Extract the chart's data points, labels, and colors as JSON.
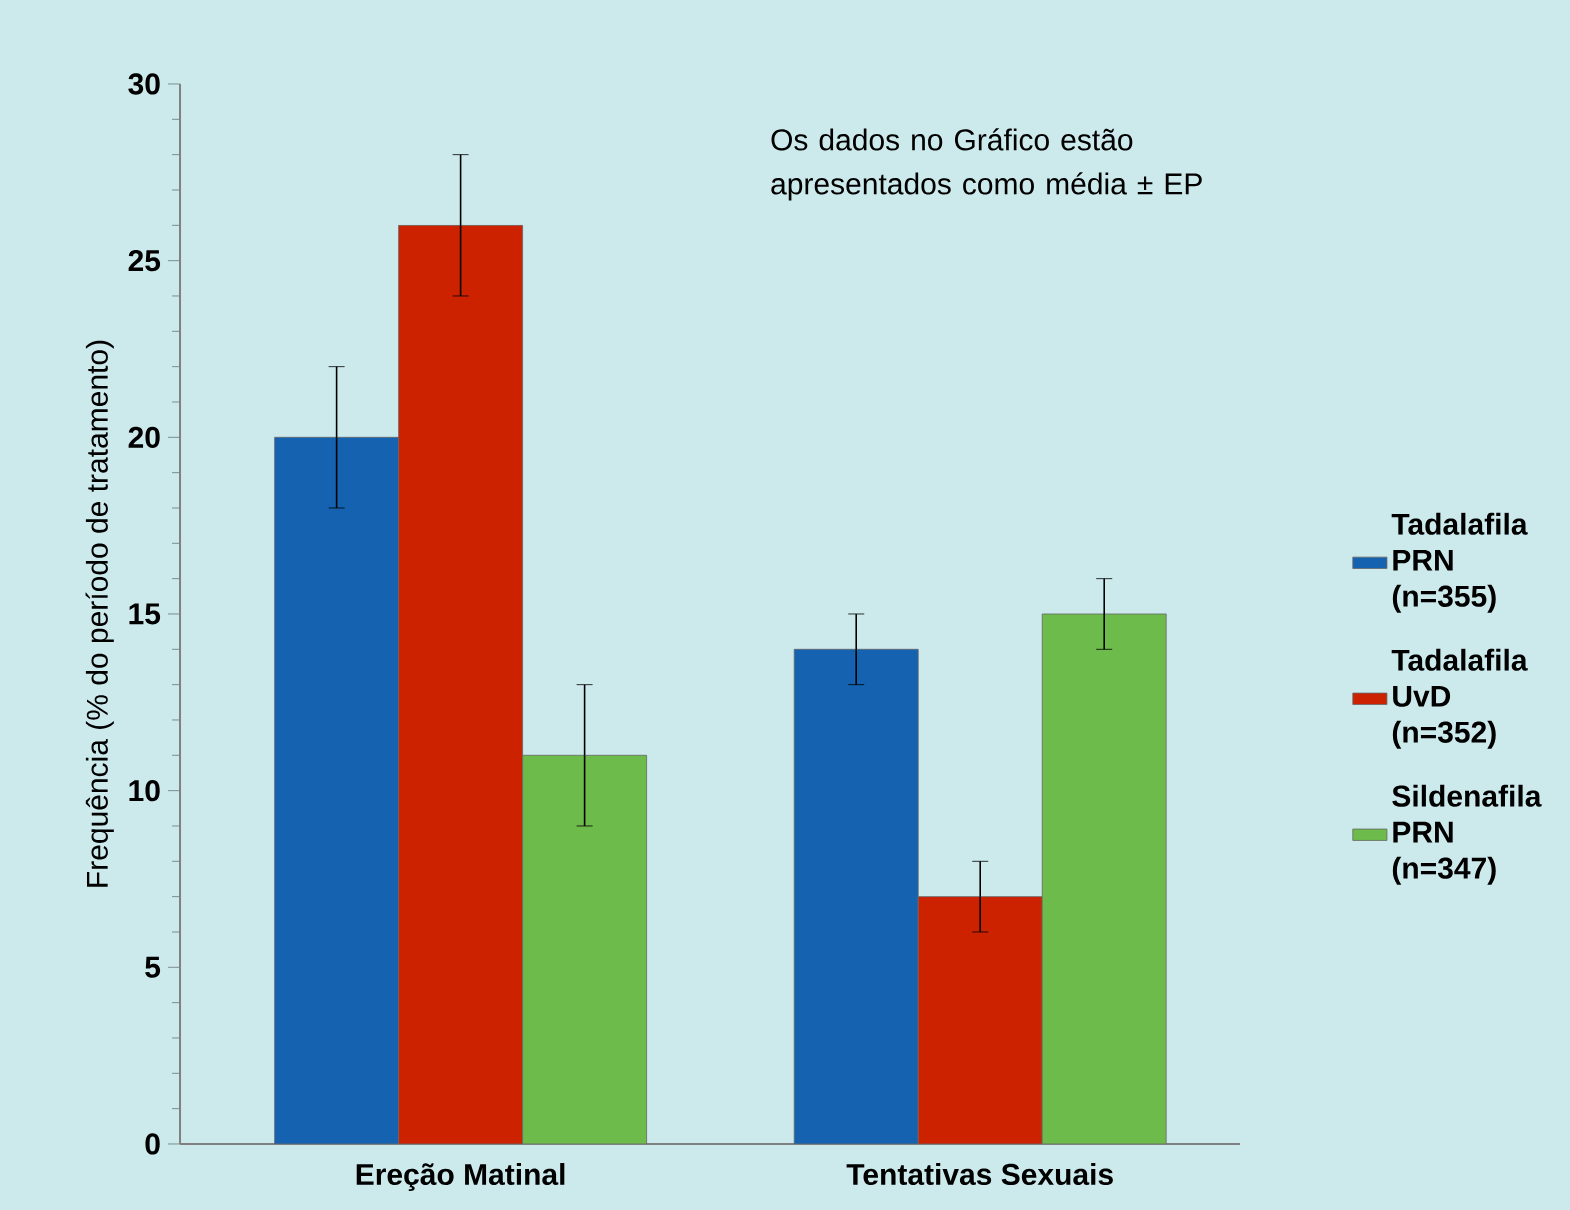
{
  "chart_data": {
    "type": "bar",
    "ylabel": "Frequência (% do período de tratamento)",
    "categories": [
      "Ereção Matinal",
      "Tentativas Sexuais"
    ],
    "series": [
      {
        "name": "Tadalafila PRN (n=355)",
        "color": "#1563b0",
        "values": [
          20,
          14
        ],
        "errors": [
          2,
          1
        ]
      },
      {
        "name": "Tadalafila UvD (n=352)",
        "color": "#cc2200",
        "values": [
          26,
          7
        ],
        "errors": [
          2,
          1
        ]
      },
      {
        "name": "Sildenafila PRN (n=347)",
        "color": "#6dbb4a",
        "values": [
          11,
          15
        ],
        "errors": [
          2,
          1
        ]
      }
    ],
    "ylim": [
      0,
      30
    ],
    "yticks": [
      0,
      5,
      10,
      15,
      20,
      25,
      30
    ],
    "grid": false,
    "legend": "right",
    "annotations": [
      "Os dados no Gráfico estão apresentados como média ± EP"
    ]
  }
}
